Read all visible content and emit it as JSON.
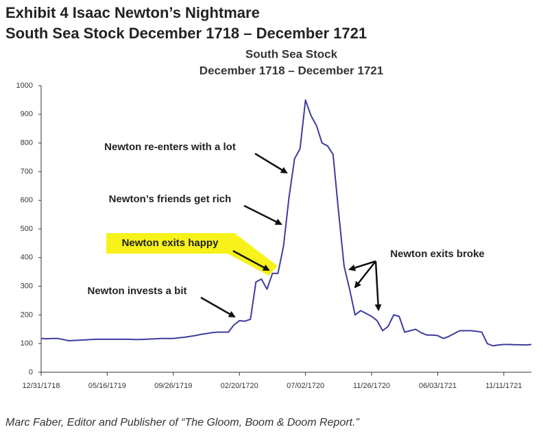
{
  "header": {
    "title": "Exhibit 4  Isaac Newton’s Nightmare",
    "subtitle": "South Sea Stock December 1718 – December 1721"
  },
  "chart_data": {
    "type": "line",
    "title": "South Sea Stock",
    "subtitle": "December 1718 – December 1721",
    "categories": [
      "12/31/1718",
      null,
      null,
      null,
      null,
      null,
      null,
      null,
      null,
      null,
      null,
      null,
      "05/16/1719",
      null,
      null,
      null,
      null,
      null,
      null,
      null,
      null,
      null,
      null,
      null,
      "09/26/1719",
      null,
      null,
      null,
      null,
      null,
      null,
      null,
      null,
      null,
      null,
      null,
      "02/20/1720",
      null,
      null,
      null,
      null,
      null,
      null,
      null,
      null,
      null,
      null,
      null,
      "07/02/1720",
      null,
      null,
      null,
      null,
      null,
      null,
      null,
      null,
      null,
      null,
      null,
      "11/26/1720",
      null,
      null,
      null,
      null,
      null,
      null,
      null,
      null,
      null,
      null,
      null,
      "06/03/1721",
      null,
      null,
      null,
      null,
      null,
      null,
      null,
      null,
      null,
      null,
      null,
      "11/11/1721",
      null,
      null,
      null,
      null,
      null
    ],
    "values": [
      118,
      117,
      118,
      118,
      114,
      110,
      111,
      112,
      113,
      114,
      115,
      115,
      115,
      115,
      115,
      115,
      115,
      114,
      114,
      115,
      116,
      117,
      118,
      118,
      118,
      120,
      122,
      125,
      128,
      132,
      135,
      138,
      140,
      140,
      140,
      165,
      180,
      178,
      185,
      315,
      325,
      290,
      345,
      345,
      440,
      610,
      745,
      780,
      950,
      895,
      860,
      800,
      790,
      760,
      560,
      370,
      290,
      200,
      215,
      205,
      195,
      180,
      145,
      160,
      200,
      195,
      140,
      145,
      150,
      138,
      130,
      130,
      128,
      118,
      125,
      135,
      145,
      145,
      145,
      143,
      140,
      100,
      92,
      95,
      97,
      97,
      96,
      96,
      95,
      97
    ],
    "color": "#3b3b9c",
    "ylim": [
      0,
      1000
    ],
    "yticks": [
      0,
      100,
      200,
      300,
      400,
      500,
      600,
      700,
      800,
      900,
      1000
    ],
    "annotations": [
      "Newton re-enters with a lot",
      "Newton’s friends get rich",
      "Newton exits happy",
      "Newton invests a bit",
      "Newton exits broke"
    ]
  },
  "footer": "Marc Faber, Editor and Publisher of “The Gloom, Boom & Doom Report.”"
}
